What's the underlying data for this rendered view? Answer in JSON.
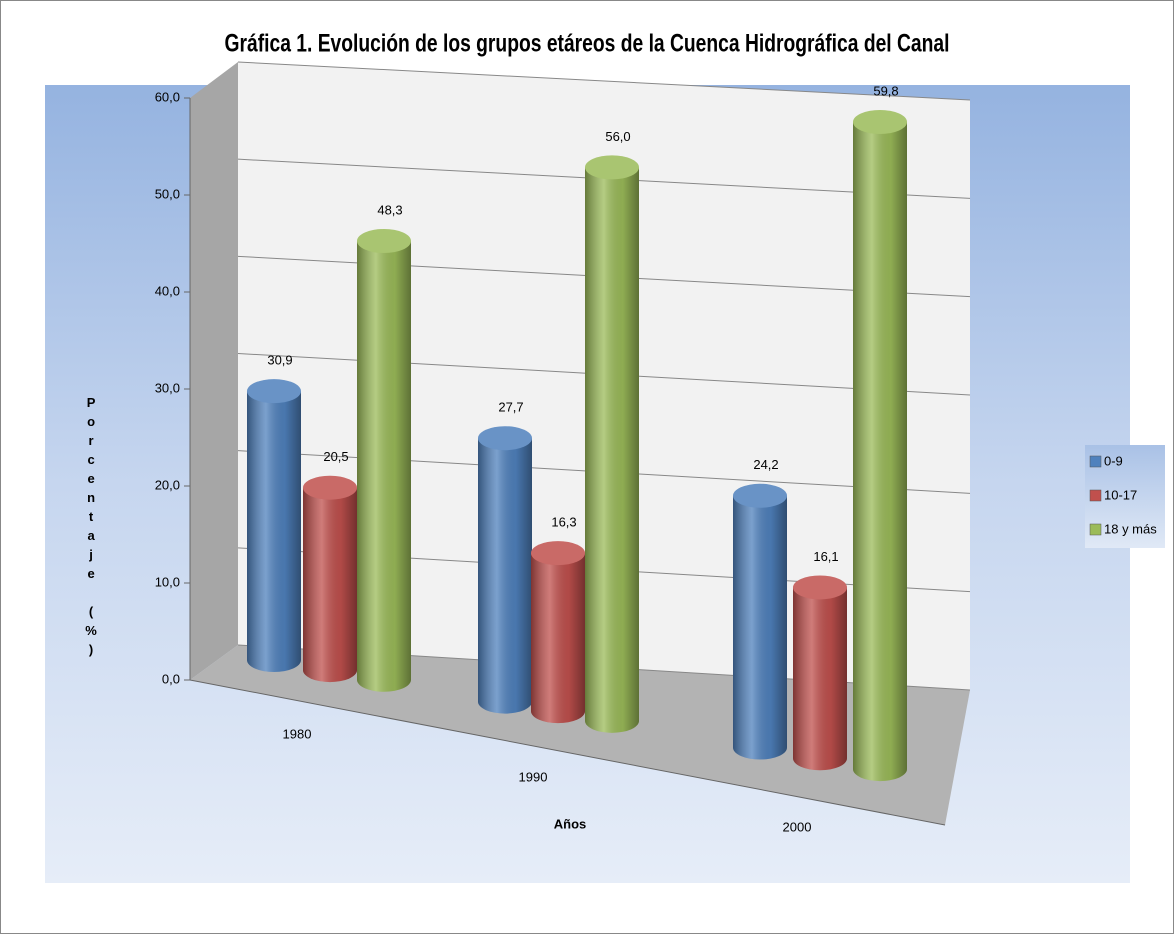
{
  "chart_data": {
    "type": "bar3d",
    "title": "Gráfica 1. Evolución de los grupos etáreos de la Cuenca Hidrográfica del Canal",
    "y_label": "Porcentaje (%)",
    "x_label": "Años",
    "categories": [
      "1980",
      "1990",
      "2000"
    ],
    "series": [
      {
        "name": "0-9",
        "color": "#4f81bd",
        "values": [
          30.9,
          27.7,
          24.2
        ],
        "value_labels": [
          "30,9",
          "27,7",
          "24,2"
        ]
      },
      {
        "name": "10-17",
        "color": "#c0504d",
        "values": [
          20.5,
          16.3,
          16.1
        ],
        "value_labels": [
          "20,5",
          "16,3",
          "16,1"
        ]
      },
      {
        "name": "18 y más",
        "color": "#9bbb59",
        "values": [
          48.3,
          56.0,
          59.8
        ],
        "value_labels": [
          "48,3",
          "56,0",
          "59,8"
        ]
      }
    ],
    "ylim": [
      0,
      60
    ],
    "yticks": [
      {
        "value": 0,
        "label": "0,0"
      },
      {
        "value": 10,
        "label": "10,0"
      },
      {
        "value": 20,
        "label": "20,0"
      },
      {
        "value": 30,
        "label": "30,0"
      },
      {
        "value": 40,
        "label": "40,0"
      },
      {
        "value": 50,
        "label": "50,0"
      },
      {
        "value": 60,
        "label": "60,0"
      }
    ],
    "grid": true,
    "legend": "right"
  }
}
